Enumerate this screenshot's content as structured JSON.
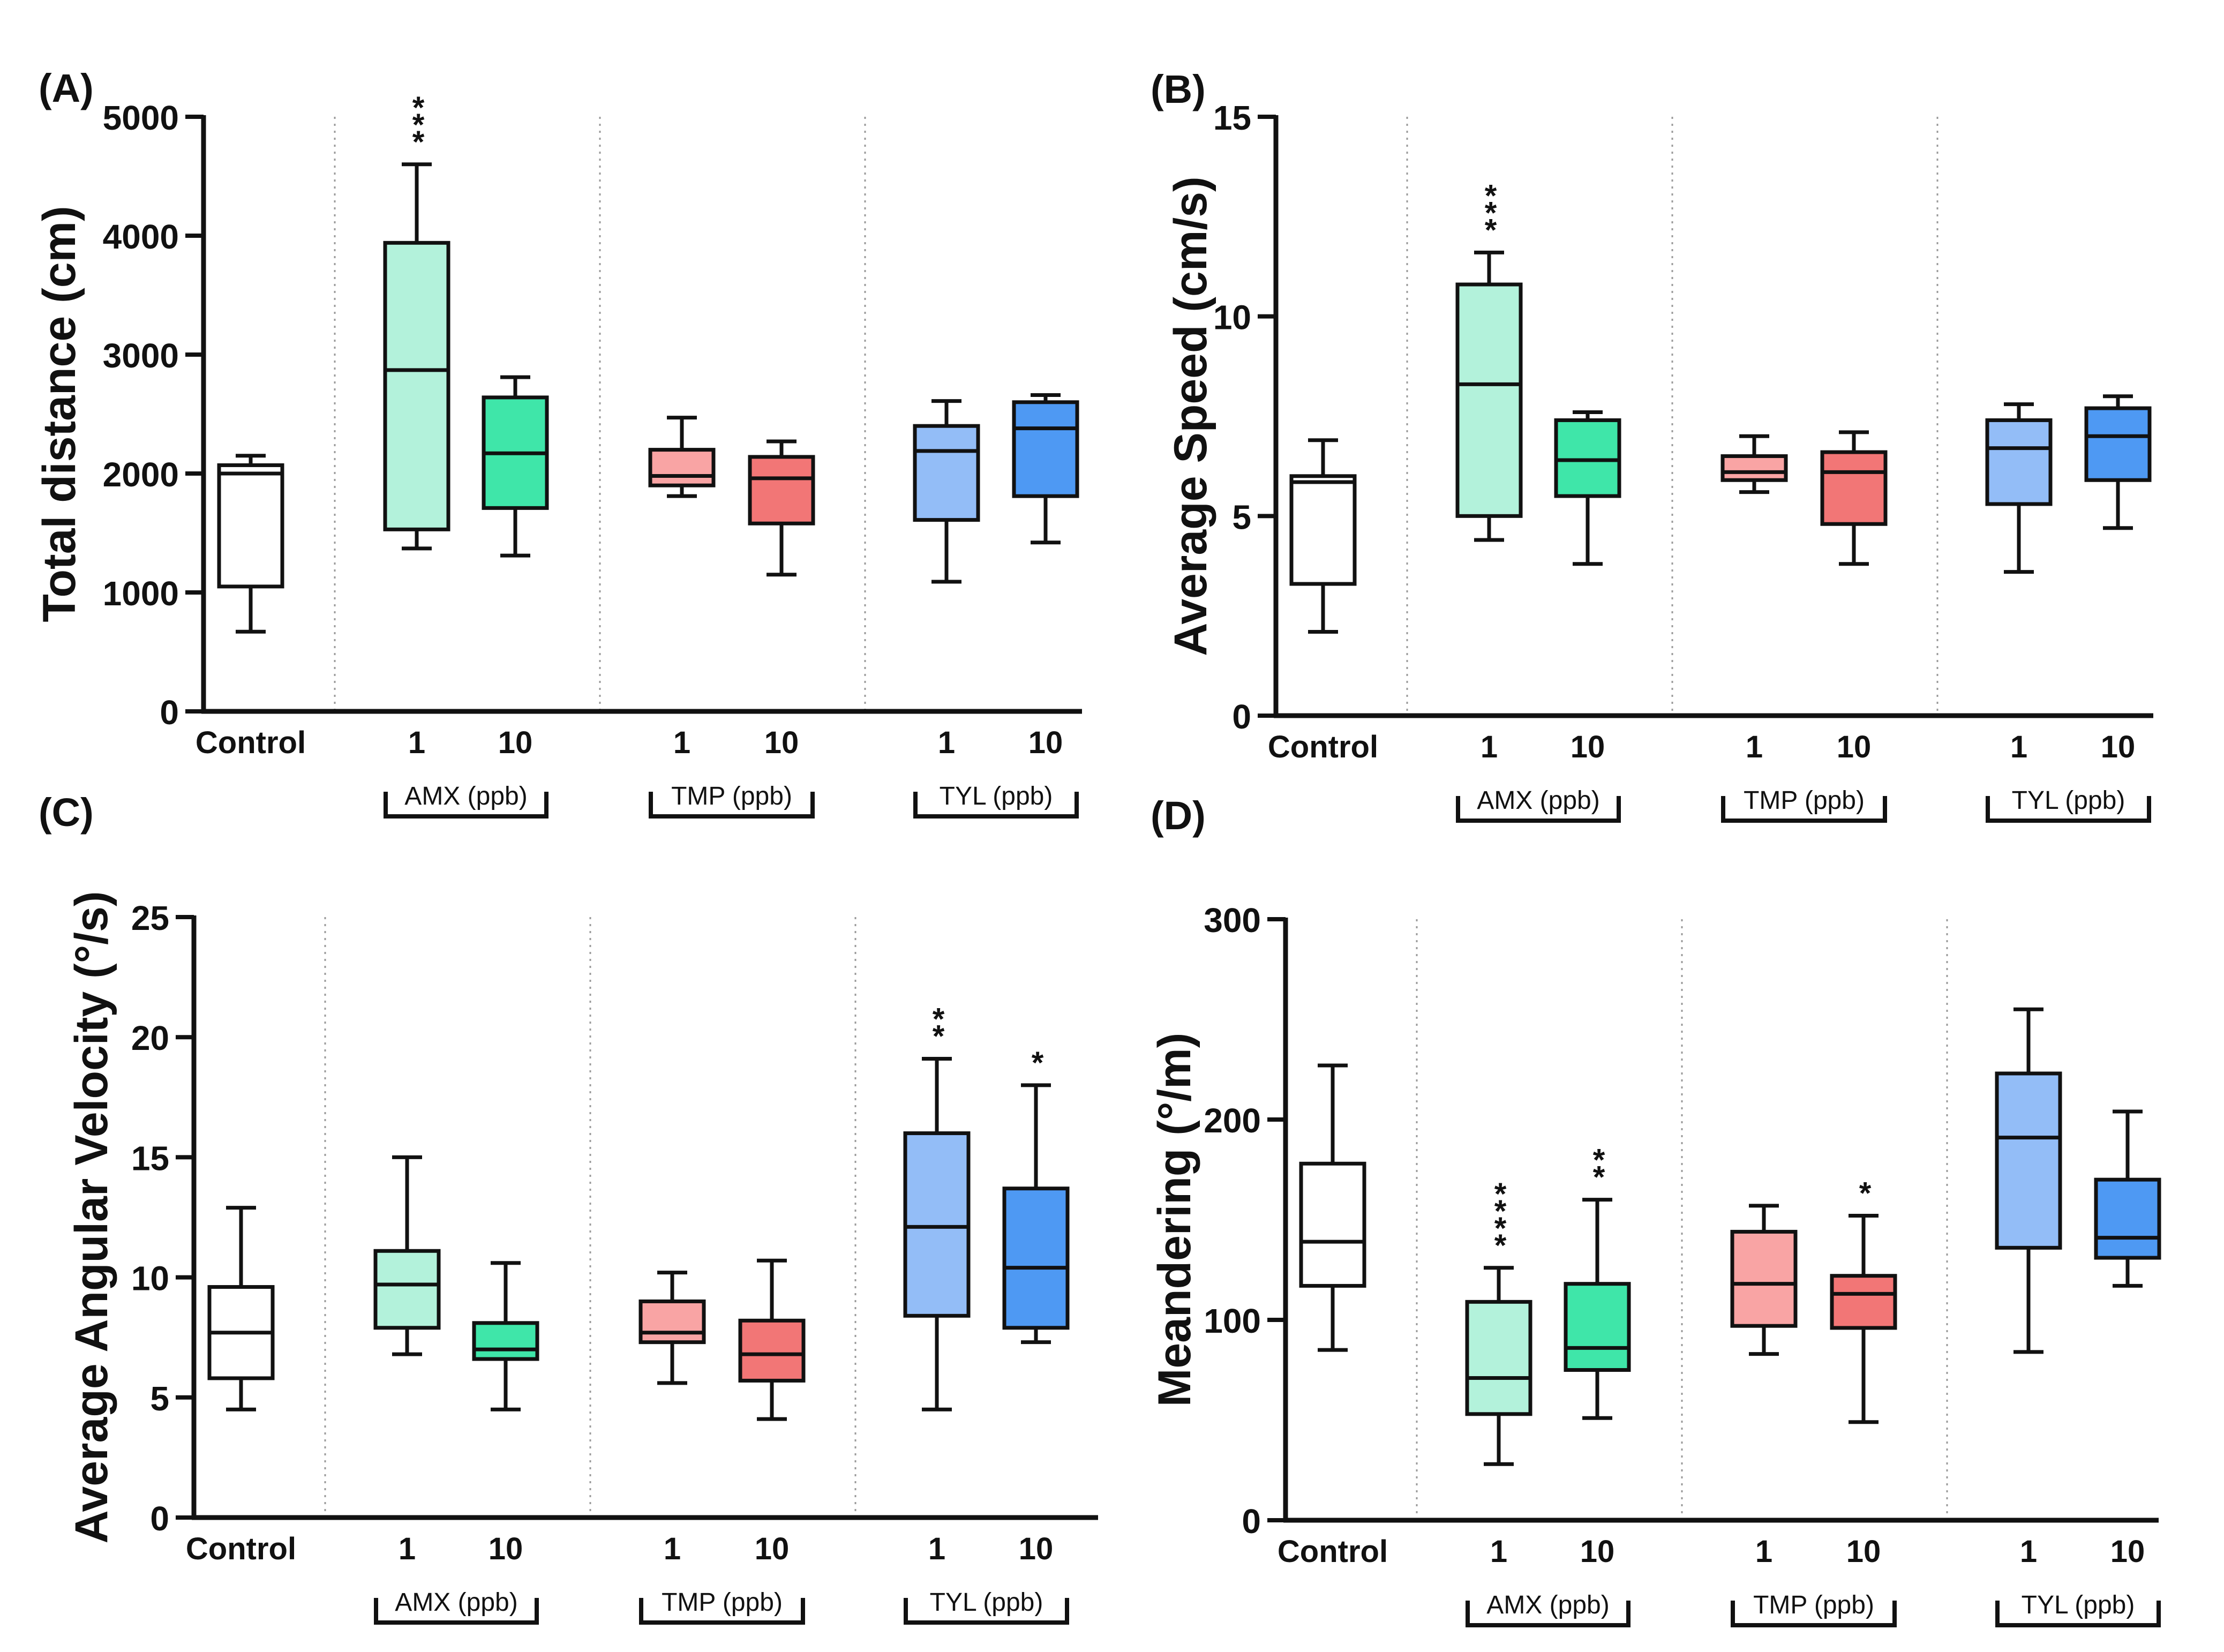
{
  "colors": {
    "control": "#ffffff",
    "amx_1": "#b3f2db",
    "amx_10": "#3fe6a9",
    "tmp_1": "#f9a4a4",
    "tmp_10": "#f27676",
    "tyl_1": "#93bdf7",
    "tyl_10": "#4e99f3",
    "stroke": "#111111",
    "separator": "#9a9a9a"
  },
  "chart_data": [
    {
      "type": "box",
      "panel_label": "(A)",
      "ylabel": "Total distance (cm)",
      "ylim": [
        0,
        5000
      ],
      "yticks": [
        "0",
        "1000",
        "2000",
        "3000",
        "4000",
        "5000"
      ],
      "groups": [
        {
          "label": "Control",
          "bracket": ""
        },
        {
          "label": "",
          "bracket": "AMX (ppb)"
        },
        {
          "label": "",
          "bracket": "TMP (ppb)"
        },
        {
          "label": "",
          "bracket": "TYL (ppb)"
        }
      ],
      "series": [
        {
          "name": "Control",
          "tick": "Control",
          "color": "control",
          "min": 670,
          "q1": 1050,
          "median": 2000,
          "q3": 2070,
          "max": 2150,
          "sig": ""
        },
        {
          "name": "AMX 1",
          "tick": "1",
          "color": "amx_1",
          "min": 1370,
          "q1": 1530,
          "median": 2870,
          "q3": 3940,
          "max": 4600,
          "sig": "***"
        },
        {
          "name": "AMX 10",
          "tick": "10",
          "color": "amx_10",
          "min": 1310,
          "q1": 1710,
          "median": 2170,
          "q3": 2640,
          "max": 2810,
          "sig": ""
        },
        {
          "name": "TMP 1",
          "tick": "1",
          "color": "tmp_1",
          "min": 1810,
          "q1": 1900,
          "median": 1980,
          "q3": 2200,
          "max": 2470,
          "sig": ""
        },
        {
          "name": "TMP 10",
          "tick": "10",
          "color": "tmp_10",
          "min": 1150,
          "q1": 1580,
          "median": 1960,
          "q3": 2140,
          "max": 2270,
          "sig": ""
        },
        {
          "name": "TYL 1",
          "tick": "1",
          "color": "tyl_1",
          "min": 1090,
          "q1": 1610,
          "median": 2190,
          "q3": 2400,
          "max": 2610,
          "sig": ""
        },
        {
          "name": "TYL 10",
          "tick": "10",
          "color": "tyl_10",
          "min": 1420,
          "q1": 1810,
          "median": 2380,
          "q3": 2600,
          "max": 2660,
          "sig": ""
        }
      ]
    },
    {
      "type": "box",
      "panel_label": "(B)",
      "ylabel": "Average Speed (cm/s)",
      "ylim": [
        0,
        15
      ],
      "yticks": [
        "0",
        "5",
        "10",
        "15"
      ],
      "groups": [
        {
          "label": "Control",
          "bracket": ""
        },
        {
          "label": "",
          "bracket": "AMX (ppb)"
        },
        {
          "label": "",
          "bracket": "TMP (ppb)"
        },
        {
          "label": "",
          "bracket": "TYL (ppb)"
        }
      ],
      "series": [
        {
          "name": "Control",
          "tick": "Control",
          "color": "control",
          "min": 2.1,
          "q1": 3.3,
          "median": 5.85,
          "q3": 6.0,
          "max": 6.9,
          "sig": ""
        },
        {
          "name": "AMX 1",
          "tick": "1",
          "color": "amx_1",
          "min": 4.4,
          "q1": 5.0,
          "median": 8.3,
          "q3": 10.8,
          "max": 11.6,
          "sig": "***"
        },
        {
          "name": "AMX 10",
          "tick": "10",
          "color": "amx_10",
          "min": 3.8,
          "q1": 5.5,
          "median": 6.4,
          "q3": 7.4,
          "max": 7.6,
          "sig": ""
        },
        {
          "name": "TMP 1",
          "tick": "1",
          "color": "tmp_1",
          "min": 5.6,
          "q1": 5.9,
          "median": 6.1,
          "q3": 6.5,
          "max": 7.0,
          "sig": ""
        },
        {
          "name": "TMP 10",
          "tick": "10",
          "color": "tmp_10",
          "min": 3.8,
          "q1": 4.8,
          "median": 6.1,
          "q3": 6.6,
          "max": 7.1,
          "sig": ""
        },
        {
          "name": "TYL 1",
          "tick": "1",
          "color": "tyl_1",
          "min": 3.6,
          "q1": 5.3,
          "median": 6.7,
          "q3": 7.4,
          "max": 7.8,
          "sig": ""
        },
        {
          "name": "TYL 10",
          "tick": "10",
          "color": "tyl_10",
          "min": 4.7,
          "q1": 5.9,
          "median": 7.0,
          "q3": 7.7,
          "max": 8.0,
          "sig": ""
        }
      ]
    },
    {
      "type": "box",
      "panel_label": "(C)",
      "ylabel": "Average Angular Velocity (°/s)",
      "ylim": [
        0,
        25
      ],
      "yticks": [
        "0",
        "5",
        "10",
        "15",
        "20",
        "25"
      ],
      "groups": [
        {
          "label": "Control",
          "bracket": ""
        },
        {
          "label": "",
          "bracket": "AMX (ppb)"
        },
        {
          "label": "",
          "bracket": "TMP (ppb)"
        },
        {
          "label": "",
          "bracket": "TYL (ppb)"
        }
      ],
      "series": [
        {
          "name": "Control",
          "tick": "Control",
          "color": "control",
          "min": 4.5,
          "q1": 5.8,
          "median": 7.7,
          "q3": 9.6,
          "max": 12.9,
          "sig": ""
        },
        {
          "name": "AMX 1",
          "tick": "1",
          "color": "amx_1",
          "min": 6.8,
          "q1": 7.9,
          "median": 9.7,
          "q3": 11.1,
          "max": 15.0,
          "sig": ""
        },
        {
          "name": "AMX 10",
          "tick": "10",
          "color": "amx_10",
          "min": 4.5,
          "q1": 6.6,
          "median": 7.0,
          "q3": 8.1,
          "max": 10.6,
          "sig": ""
        },
        {
          "name": "TMP 1",
          "tick": "1",
          "color": "tmp_1",
          "min": 5.6,
          "q1": 7.3,
          "median": 7.7,
          "q3": 9.0,
          "max": 10.2,
          "sig": ""
        },
        {
          "name": "TMP 10",
          "tick": "10",
          "color": "tmp_10",
          "min": 4.1,
          "q1": 5.7,
          "median": 6.8,
          "q3": 8.2,
          "max": 10.7,
          "sig": ""
        },
        {
          "name": "TYL 1",
          "tick": "1",
          "color": "tyl_1",
          "min": 4.5,
          "q1": 8.4,
          "median": 12.1,
          "q3": 16.0,
          "max": 19.1,
          "sig": "**"
        },
        {
          "name": "TYL 10",
          "tick": "10",
          "color": "tyl_10",
          "min": 7.3,
          "q1": 7.9,
          "median": 10.4,
          "q3": 13.7,
          "max": 18.0,
          "sig": "*"
        }
      ]
    },
    {
      "type": "box",
      "panel_label": "(D)",
      "ylabel": "Meandering (°/m)",
      "ylim": [
        0,
        300
      ],
      "yticks": [
        "0",
        "100",
        "200",
        "300"
      ],
      "groups": [
        {
          "label": "Control",
          "bracket": ""
        },
        {
          "label": "",
          "bracket": "AMX (ppb)"
        },
        {
          "label": "",
          "bracket": "TMP (ppb)"
        },
        {
          "label": "",
          "bracket": "TYL (ppb)"
        }
      ],
      "series": [
        {
          "name": "Control",
          "tick": "Control",
          "color": "control",
          "min": 85,
          "q1": 117,
          "median": 139,
          "q3": 178,
          "max": 227,
          "sig": ""
        },
        {
          "name": "AMX 1",
          "tick": "1",
          "color": "amx_1",
          "min": 28,
          "q1": 53,
          "median": 71,
          "q3": 109,
          "max": 126,
          "sig": "****"
        },
        {
          "name": "AMX 10",
          "tick": "10",
          "color": "amx_10",
          "min": 51,
          "q1": 75,
          "median": 86,
          "q3": 118,
          "max": 160,
          "sig": "**"
        },
        {
          "name": "TMP 1",
          "tick": "1",
          "color": "tmp_1",
          "min": 83,
          "q1": 97,
          "median": 118,
          "q3": 144,
          "max": 157,
          "sig": ""
        },
        {
          "name": "TMP 10",
          "tick": "10",
          "color": "tmp_10",
          "min": 49,
          "q1": 96,
          "median": 113,
          "q3": 122,
          "max": 152,
          "sig": "*"
        },
        {
          "name": "TYL 1",
          "tick": "1",
          "color": "tyl_1",
          "min": 84,
          "q1": 136,
          "median": 191,
          "q3": 223,
          "max": 255,
          "sig": ""
        },
        {
          "name": "TYL 10",
          "tick": "10",
          "color": "tyl_10",
          "min": 117,
          "q1": 131,
          "median": 141,
          "q3": 170,
          "max": 204,
          "sig": ""
        }
      ]
    }
  ]
}
